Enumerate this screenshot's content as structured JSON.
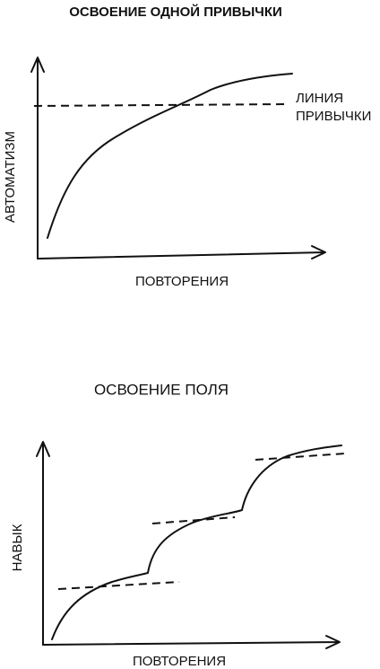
{
  "top_chart": {
    "title": "ОСВОЕНИЕ ОДНОЙ ПРИВЫЧКИ",
    "y_label": "АВТОМАТИЗМ",
    "x_label": "ПОВТОРЕНИЯ",
    "line_label": [
      "ЛИНИЯ",
      "ПРИВЫЧКИ"
    ]
  },
  "bottom_chart": {
    "title": "ОСВОЕНИЕ ПОЛЯ",
    "y_label": "НАВЫК",
    "x_label": "ПОВТОРЕНИЯ"
  }
}
